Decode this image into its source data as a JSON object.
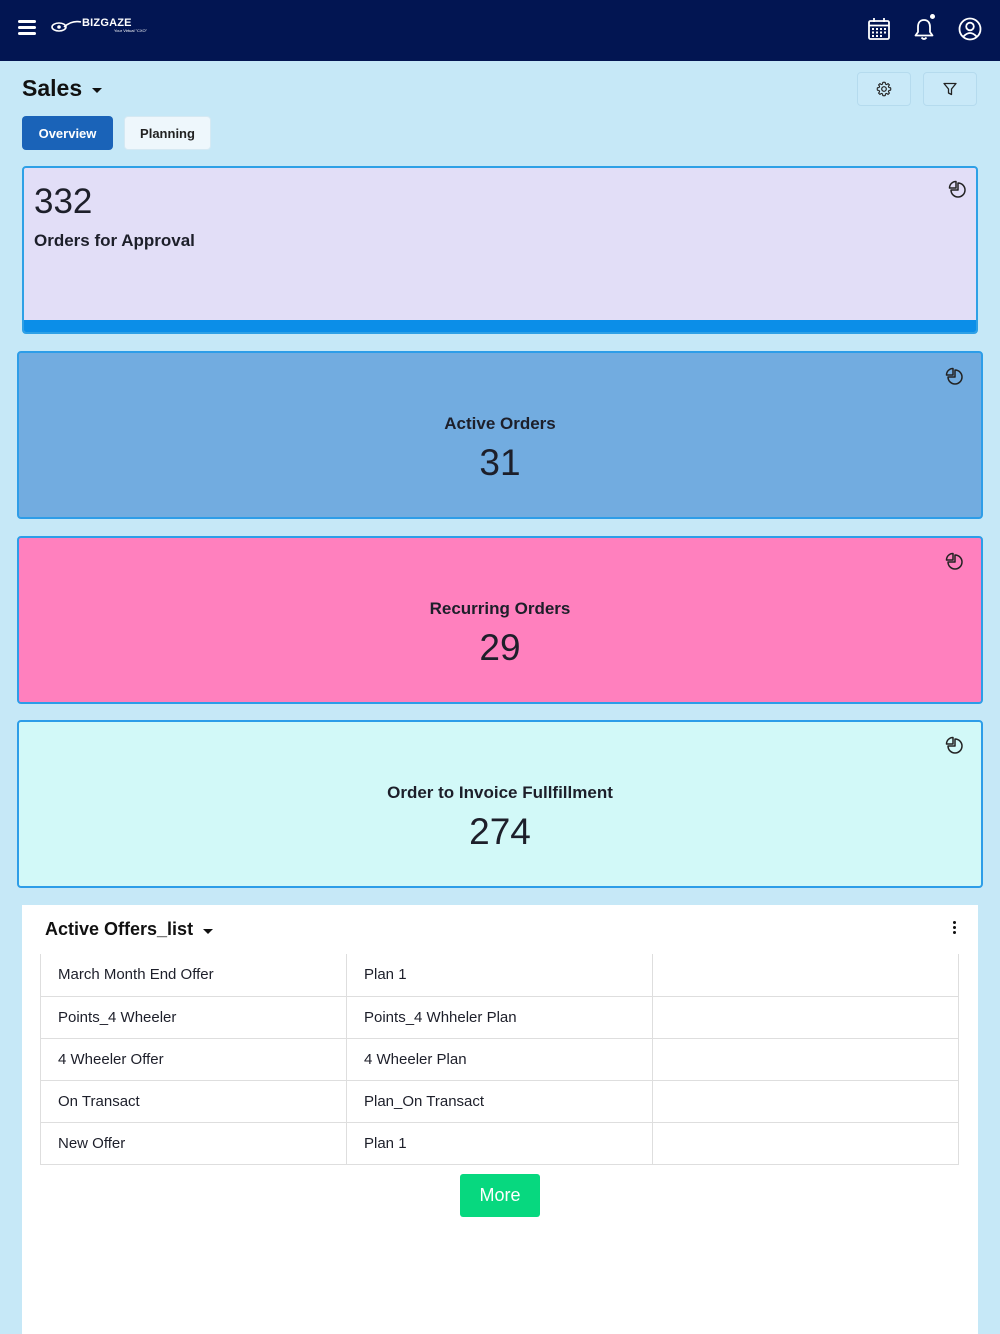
{
  "app": {
    "logo_text": "BIZGAZE",
    "logo_tagline": "Your Virtual \"CXO\"",
    "icons": [
      "menu-icon",
      "calendar-icon",
      "bell-icon",
      "user-icon"
    ],
    "theme": {
      "topbar": "#021552",
      "background": "#c6e8f7",
      "accent": "#1a63b8"
    }
  },
  "page": {
    "title": "Sales",
    "tabs": [
      {
        "label": "Overview",
        "active": true
      },
      {
        "label": "Planning",
        "active": false
      }
    ]
  },
  "cards": {
    "approval": {
      "value": "332",
      "label": "Orders for Approval",
      "color": "#e2def7"
    },
    "active": {
      "value": "31",
      "label": "Active Orders",
      "color": "#72ace0"
    },
    "recurring": {
      "value": "29",
      "label": "Recurring Orders",
      "color": "#ff80be"
    },
    "invoice": {
      "value": "274",
      "label": "Order to Invoice Fullfillment",
      "color": "#d2f9f8"
    }
  },
  "offers_list": {
    "title": "Active Offers_list",
    "rows": [
      {
        "offer": "March Month End Offer",
        "plan": "Plan 1"
      },
      {
        "offer": "Points_4 Wheeler",
        "plan": "Points_4 Whheler Plan"
      },
      {
        "offer": "4 Wheeler Offer",
        "plan": "4 Wheeler Plan"
      },
      {
        "offer": "On Transact",
        "plan": "Plan_On Transact"
      },
      {
        "offer": "New Offer",
        "plan": "Plan 1"
      }
    ],
    "more_label": "More",
    "more_color": "#07d87f"
  }
}
